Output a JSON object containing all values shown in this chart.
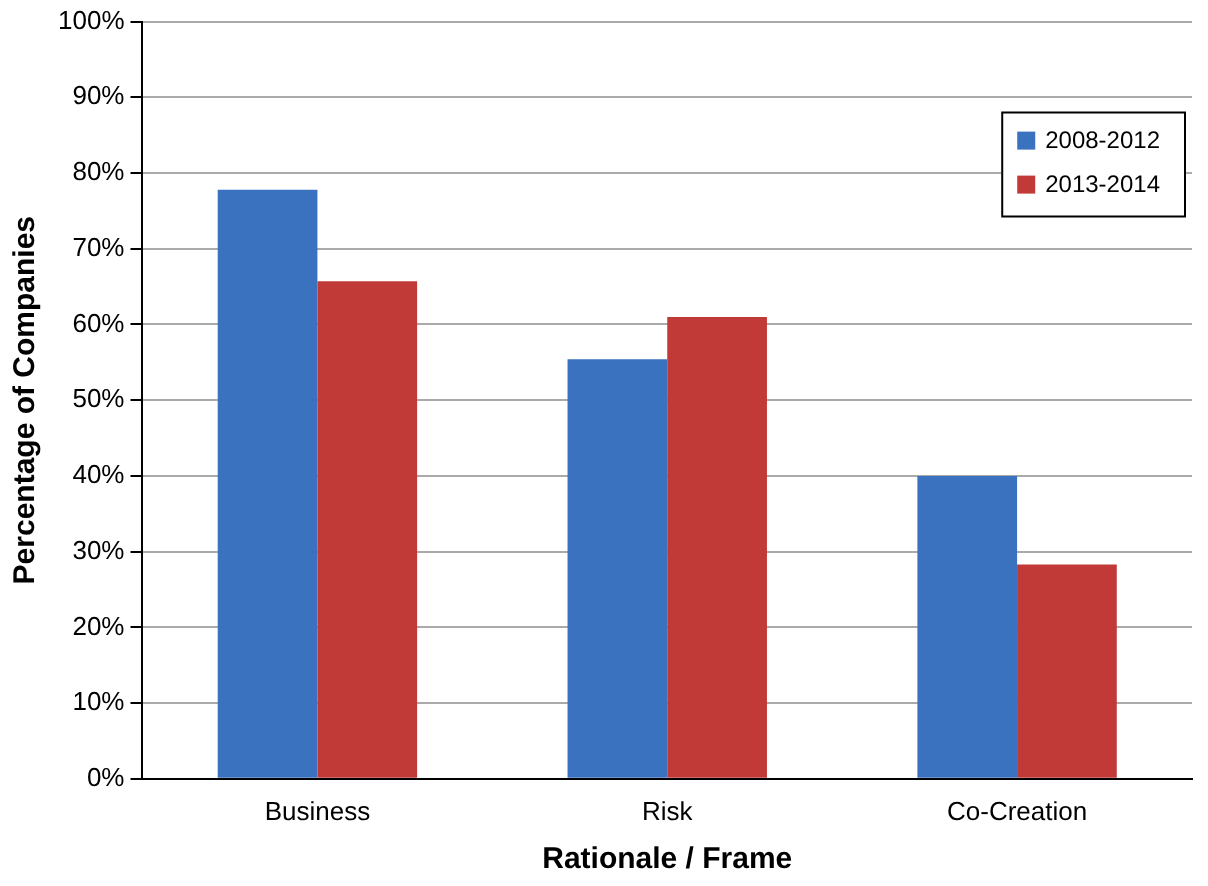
{
  "chart_data": {
    "type": "bar",
    "xlabel": "Rationale / Frame",
    "ylabel": "Percentage of Companies",
    "categories": [
      "Business",
      "Risk",
      "Co-Creation"
    ],
    "series": [
      {
        "name": "2008-2012",
        "color": "#3a72bf",
        "values": [
          77.8,
          55.4,
          40
        ]
      },
      {
        "name": "2013-2014",
        "color": "#c23a37",
        "values": [
          65.7,
          61,
          28.3
        ]
      }
    ],
    "ylim": [
      0,
      100
    ],
    "yticks": [
      {
        "value": 0,
        "label": "0%"
      },
      {
        "value": 10,
        "label": "10%"
      },
      {
        "value": 20,
        "label": "20%"
      },
      {
        "value": 30,
        "label": "30%"
      },
      {
        "value": 40,
        "label": "40%"
      },
      {
        "value": 50,
        "label": "50%"
      },
      {
        "value": 60,
        "label": "60%"
      },
      {
        "value": 70,
        "label": "70%"
      },
      {
        "value": 80,
        "label": "80%"
      },
      {
        "value": 90,
        "label": "90%"
      },
      {
        "value": 100,
        "label": "100%"
      }
    ],
    "grid": "y",
    "legend": "top right"
  }
}
